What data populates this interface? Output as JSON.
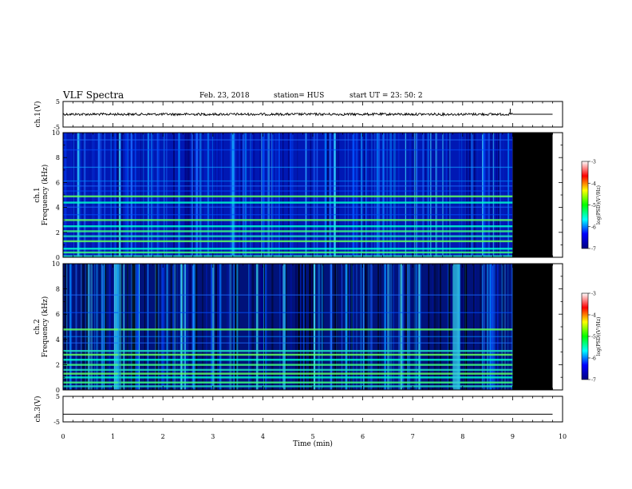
{
  "header": {
    "title": "VLF Spectra",
    "date": "Feb. 23, 2018",
    "station": "station= HUS",
    "start": "start  UT =   23: 50: 2"
  },
  "chart_data": [
    {
      "type": "line",
      "panel": "ch1-waveform",
      "ylabel": "ch.1(V)",
      "ylim": [
        -5,
        5
      ],
      "ytick_labels": [
        "5",
        "-5"
      ],
      "x": [
        0,
        9,
        9.8
      ],
      "y": [
        0,
        0,
        0
      ],
      "data_extent_min": 9.0
    },
    {
      "type": "heatmap",
      "panel": "ch1-spectrogram",
      "ylabel": "ch.1\nFrequency (kHz)",
      "xlim": [
        0,
        10
      ],
      "ylim": [
        0,
        10
      ],
      "ytick_labels": [
        "0",
        "2",
        "4",
        "6",
        "8",
        "10"
      ],
      "data_extent_min": 9.0,
      "no_data_fill": "#000000",
      "bands_khz": [
        0.1,
        0.4,
        0.7,
        1.3,
        1.7,
        2.1,
        2.5,
        3.0,
        3.4,
        4.0,
        4.4,
        4.9,
        5.3,
        5.7,
        6.1,
        7.2,
        8.6,
        9.4
      ],
      "colorbar": {
        "label": "log(PSD)(V²/Hz)",
        "range": [
          -7,
          -3
        ],
        "tick_labels": [
          "-3",
          "-4",
          "-5",
          "-6",
          "-7"
        ]
      }
    },
    {
      "type": "heatmap",
      "panel": "ch2-spectrogram",
      "ylabel": "ch.2\nFrequency (kHz)",
      "xlim": [
        0,
        10
      ],
      "ylim": [
        0,
        10
      ],
      "ytick_labels": [
        "0",
        "2",
        "4",
        "6",
        "8",
        "10"
      ],
      "data_extent_min": 9.0,
      "no_data_fill": "#000000",
      "bands_khz": [
        0.3,
        0.6,
        1.0,
        1.3,
        1.6,
        2.0,
        2.4,
        2.8,
        3.1,
        3.7,
        4.2,
        4.8,
        6.1,
        7.5
      ],
      "colorbar": {
        "label": "log(PSD)(V²/Hz)",
        "range": [
          -7,
          -3
        ],
        "tick_labels": [
          "-3",
          "-4",
          "-5",
          "-6",
          "-7"
        ]
      }
    },
    {
      "type": "line",
      "panel": "ch3-waveform",
      "ylabel": "ch.3(V)",
      "ylim": [
        -5,
        5
      ],
      "ytick_labels": [
        "5",
        "-5"
      ],
      "x": [
        0,
        9.8
      ],
      "y": [
        -2,
        -2
      ]
    }
  ],
  "xaxis": {
    "label": "Time (min)",
    "xlim": [
      0,
      10
    ],
    "tick_labels": [
      "0",
      "1",
      "2",
      "3",
      "4",
      "5",
      "6",
      "7",
      "8",
      "9",
      "10"
    ]
  },
  "colors": {
    "background": "#ffffff",
    "nodata": "#000000",
    "colormap": [
      "#000080",
      "#0000ff",
      "#00ffff",
      "#00ff00",
      "#ffff00",
      "#ff0000",
      "#ffffff"
    ]
  }
}
